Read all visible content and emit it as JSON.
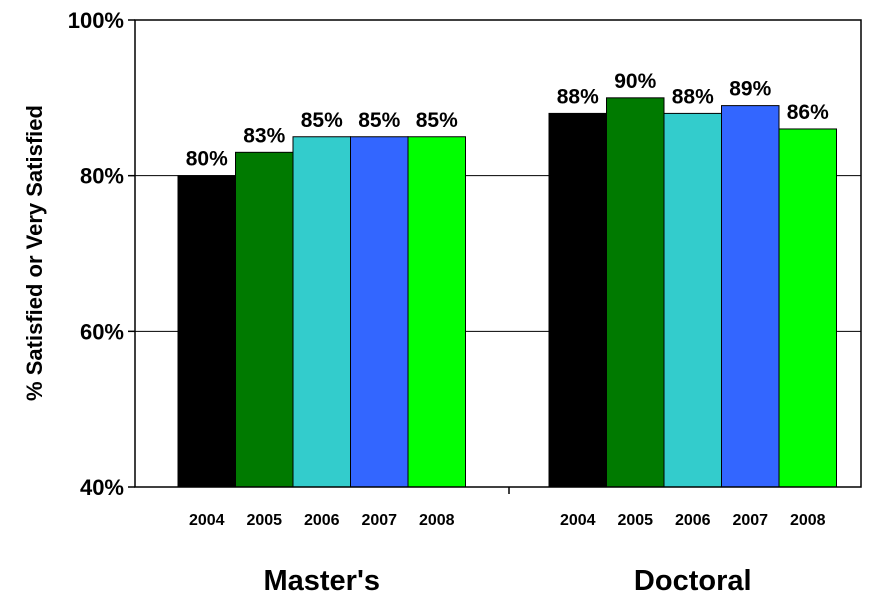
{
  "chart_data": {
    "type": "bar",
    "ylabel": "% Satisfied or Very Satisfied",
    "ylim": [
      40,
      100
    ],
    "yticks": [
      40,
      60,
      80,
      100
    ],
    "ytick_labels": [
      "40%",
      "60%",
      "80%",
      "100%"
    ],
    "grid": "horizontal",
    "groups": [
      {
        "name": "Master's",
        "bars": [
          {
            "year": "2004",
            "value": 80,
            "label": "80%"
          },
          {
            "year": "2005",
            "value": 83,
            "label": "83%"
          },
          {
            "year": "2006",
            "value": 85,
            "label": "85%"
          },
          {
            "year": "2007",
            "value": 85,
            "label": "85%"
          },
          {
            "year": "2008",
            "value": 85,
            "label": "85%"
          }
        ]
      },
      {
        "name": "Doctoral",
        "bars": [
          {
            "year": "2004",
            "value": 88,
            "label": "88%"
          },
          {
            "year": "2005",
            "value": 90,
            "label": "90%"
          },
          {
            "year": "2006",
            "value": 88,
            "label": "88%"
          },
          {
            "year": "2007",
            "value": 89,
            "label": "89%"
          },
          {
            "year": "2008",
            "value": 86,
            "label": "86%"
          }
        ]
      }
    ],
    "colors": {
      "2004": "#000000",
      "2005": "#007a00",
      "2006": "#33cccc",
      "2007": "#3366ff",
      "2008": "#00ff00"
    }
  }
}
